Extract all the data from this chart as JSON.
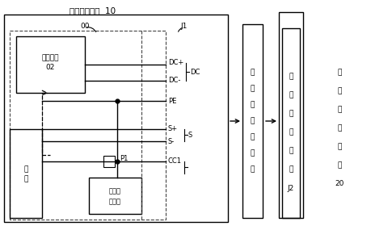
{
  "bg_color": "#ffffff",
  "title": "第一电动车辆  10",
  "label_00": "00",
  "label_J1": "J1",
  "label_power_line1": "电源电路",
  "label_power_line2": "02",
  "label_voltage_line1": "电压检",
  "label_voltage_line2": "测电路",
  "label_control_line1": "控",
  "label_control_line2": "制",
  "label_P1": "P1",
  "label_DC_pos": "DC+",
  "label_DC_neg": "DC-",
  "label_DC": "DC",
  "label_PE": "PE",
  "label_S_pos": "S+",
  "label_S_neg": "S-",
  "label_S": "S",
  "label_CC1": "CC1",
  "label_cable_chars": [
    "车",
    "对",
    "车",
    "充",
    "电",
    "线",
    "束"
  ],
  "label_port_chars": [
    "第",
    "二",
    "充",
    "电",
    "接",
    "口",
    "J2"
  ],
  "label_v2_chars": [
    "第",
    "二",
    "电",
    "动",
    "车",
    "辆",
    "20"
  ],
  "lc": "#000000",
  "dc": "#444444",
  "fs_title": 7.5,
  "fs_label": 6.5,
  "fs_small": 6.0
}
